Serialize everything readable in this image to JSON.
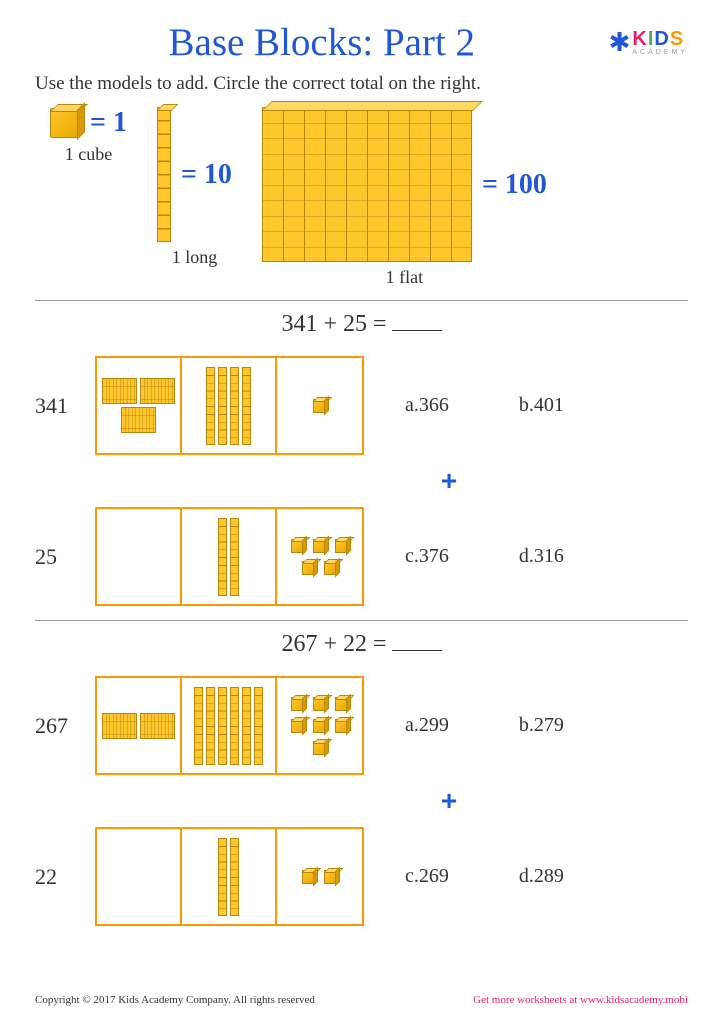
{
  "title": "Base Blocks: Part 2",
  "logo": {
    "kids": "KIDS",
    "academy": "ACADEMY"
  },
  "instruction": "Use the models to add. Circle the correct total on the right.",
  "legend": {
    "cube": {
      "value": "= 1",
      "label": "1 cube"
    },
    "long": {
      "value": "= 10",
      "label": "1 long"
    },
    "flat": {
      "value": "= 100",
      "label": "1 flat"
    }
  },
  "problem1": {
    "equation": "341  +  25  =",
    "row1": {
      "label": "341",
      "hundreds": 3,
      "tens": 4,
      "ones": 1
    },
    "row2": {
      "label": "25",
      "hundreds": 0,
      "tens": 2,
      "ones": 5
    },
    "answers": {
      "a": "a.366",
      "b": "b.401",
      "c": "c.376",
      "d": "d.316"
    }
  },
  "problem2": {
    "equation": "267  +  22  =",
    "row1": {
      "label": "267",
      "hundreds": 2,
      "tens": 6,
      "ones": 7
    },
    "row2": {
      "label": "22",
      "hundreds": 0,
      "tens": 2,
      "ones": 2
    },
    "answers": {
      "a": "a.299",
      "b": "b.279",
      "c": "c.269",
      "d": "d.289"
    }
  },
  "footer": {
    "copyright": "Copyright © 2017 Kids Academy Company. All rights reserved",
    "link": "Get more worksheets at www.kidsacademy.mobi"
  },
  "colors": {
    "primary": "#2157d6",
    "block": "#ffc72c",
    "border": "#f90"
  }
}
